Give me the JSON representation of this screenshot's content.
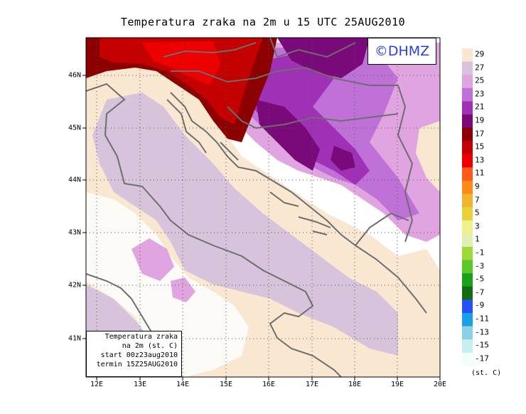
{
  "title": "Temperatura zraka na 2m u 15 UTC 25AUG2010",
  "logo": "©DHMZ",
  "info_box": {
    "line1": "Temperatura zraka",
    "line2": "na 2m (st. C)",
    "line3": "start 00z23aug2010",
    "line4": "termin 15Z25AUG2010"
  },
  "lon_labels": [
    "12E",
    "13E",
    "14E",
    "15E",
    "16E",
    "17E",
    "18E",
    "19E",
    "20E"
  ],
  "lat_labels": [
    "46N",
    "45N",
    "44N",
    "43N",
    "42N",
    "41N"
  ],
  "colorbar": {
    "labels": [
      "29",
      "27",
      "25",
      "23",
      "21",
      "19",
      "17",
      "15",
      "13",
      "11",
      "9",
      "7",
      "5",
      "3",
      "1",
      "-1",
      "-3",
      "-5",
      "-7",
      "-9",
      "-11",
      "-13",
      "-15",
      "-17"
    ],
    "colors": [
      "#fae7d2",
      "#d7c4dc",
      "#e0a4e0",
      "#c071d8",
      "#a030b6",
      "#7a0a7a",
      "#8c0000",
      "#c40000",
      "#ee0000",
      "#ff5a1a",
      "#ff8a1a",
      "#f0b432",
      "#e8d23c",
      "#f0f08c",
      "#e0f0b0",
      "#a0d838",
      "#5ac828",
      "#1aa01a",
      "#106e10",
      "#2850ff",
      "#1aa0e6",
      "#8cd0e6",
      "#c8eef0",
      "#f0fffc"
    ],
    "unit": "(st. C)"
  },
  "field_colors": {
    "sea": "#d7c4dc",
    "warm_land": "#fae7d2",
    "hot_inland": "#e0a4e0",
    "hotter": "#c071d8",
    "very_hot": "#a030b6",
    "deep": "#7a0a7a",
    "red_dark": "#8c0000",
    "red": "#c40000",
    "coast_line": "#6e6e6e"
  }
}
